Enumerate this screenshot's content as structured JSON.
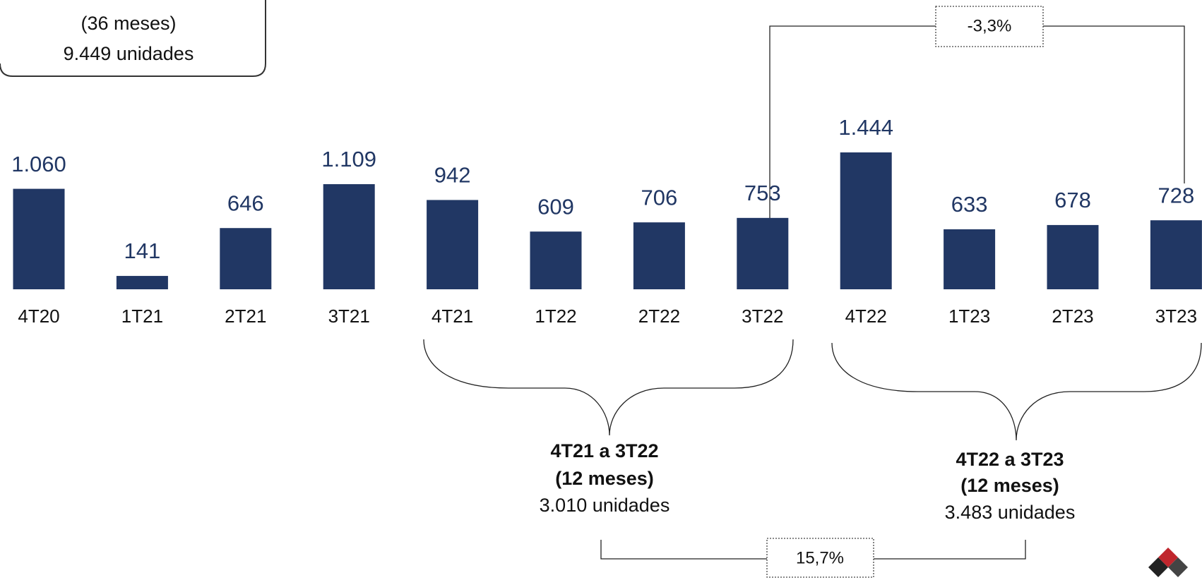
{
  "chart_data": {
    "type": "bar",
    "categories": [
      "4T20",
      "1T21",
      "2T21",
      "3T21",
      "4T21",
      "1T22",
      "2T22",
      "3T22",
      "4T22",
      "1T23",
      "2T23",
      "3T23"
    ],
    "values": [
      1060,
      141,
      646,
      1109,
      942,
      609,
      706,
      753,
      1444,
      633,
      678,
      728
    ],
    "value_labels": [
      "1.060",
      "141",
      "646",
      "1.109",
      "942",
      "609",
      "706",
      "753",
      "1.444",
      "633",
      "678",
      "728"
    ],
    "color": "#213764",
    "annotations": {
      "total": [
        "(36 meses)",
        "9.449 unidades"
      ],
      "period1": [
        "4T21 a 3T22",
        "(12 meses)",
        "3.010 unidades"
      ],
      "period2": [
        "4T22 a 3T23",
        "(12 meses)",
        "3.483 unidades"
      ],
      "change_quarter": "-3,3%",
      "change_period": "15,7%"
    }
  }
}
